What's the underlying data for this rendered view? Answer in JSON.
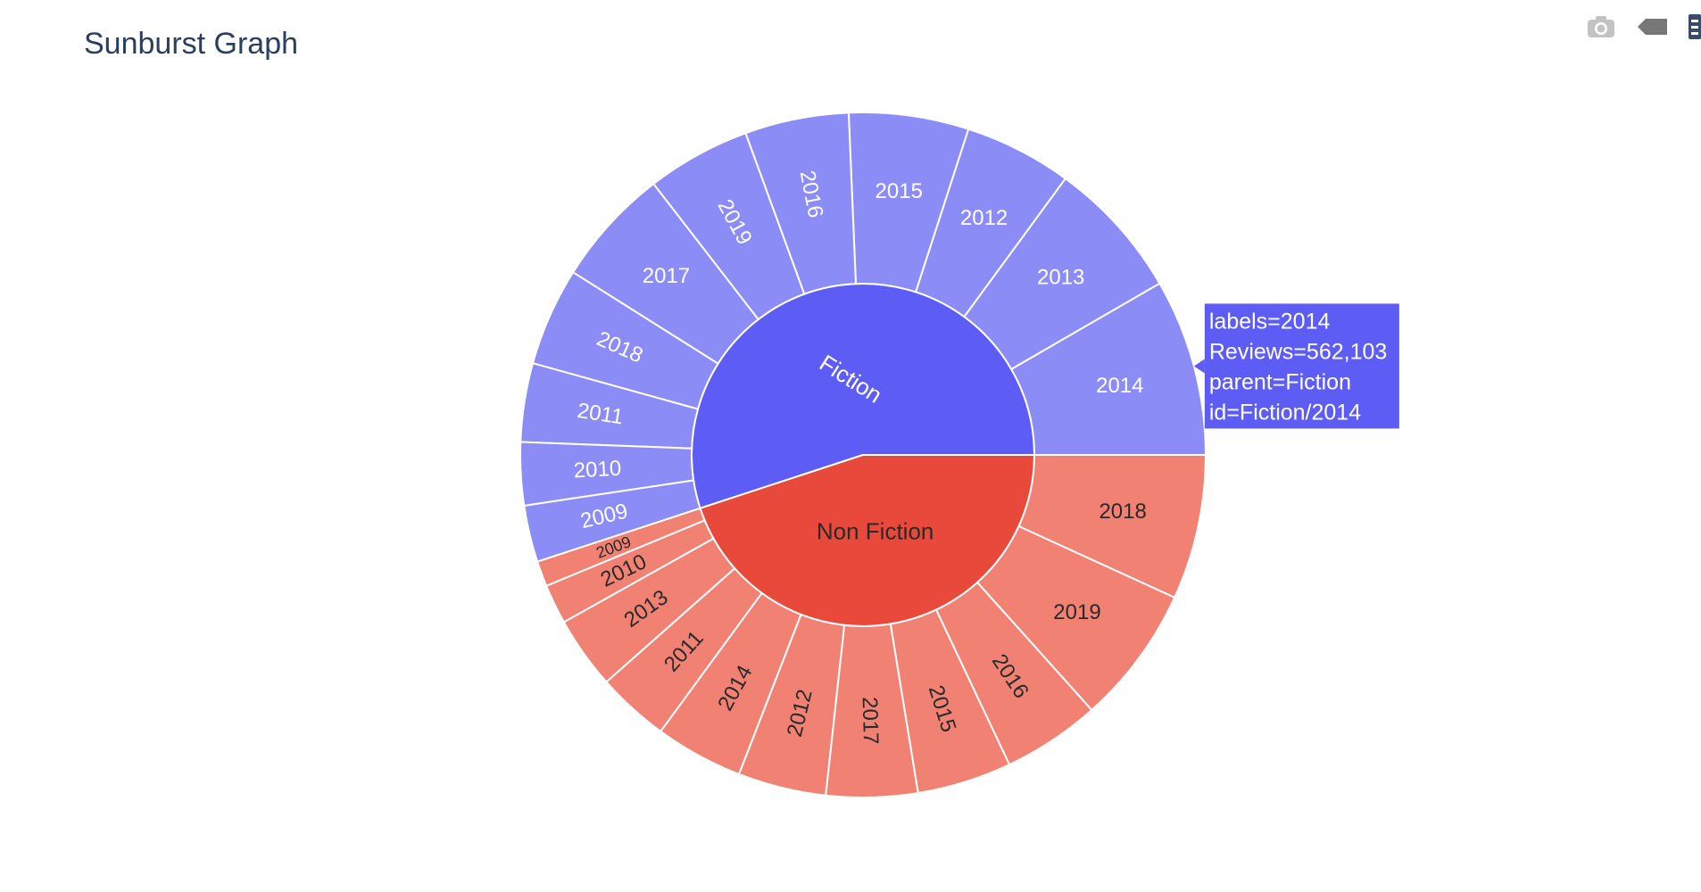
{
  "title": "Sunburst Graph",
  "modebar": {
    "icons": [
      "camera-icon",
      "tag-icon",
      "bar-chart-icon"
    ]
  },
  "colors": {
    "fiction_inner": "#5d5df6",
    "fiction_outer": "#8c8cf6",
    "nonfiction_inner": "#e8493a",
    "nonfiction_outer": "#f08173",
    "hover_bg": "#5d5df6",
    "hover_text": "#ffffff"
  },
  "chart_data": {
    "type": "sunburst",
    "value_name": "Reviews",
    "parents": [
      {
        "label": "Fiction",
        "color_key": "fiction"
      },
      {
        "label": "Non Fiction",
        "color_key": "nonfiction"
      }
    ],
    "children": [
      {
        "parent": "Fiction",
        "labels": [
          "2014",
          "2013",
          "2012",
          "2015",
          "2016",
          "2019",
          "2017",
          "2018",
          "2011",
          "2010",
          "2009"
        ],
        "values": [
          562103,
          444000,
          342000,
          380000,
          330000,
          330000,
          376000,
          312000,
          250000,
          200000,
          180000
        ]
      },
      {
        "parent": "Non Fiction",
        "labels": [
          "2009",
          "2010",
          "2013",
          "2011",
          "2014",
          "2012",
          "2017",
          "2015",
          "2016",
          "2019",
          "2018"
        ],
        "values": [
          81000,
          126000,
          230000,
          230000,
          280000,
          280000,
          290000,
          300000,
          310000,
          440000,
          460000
        ]
      }
    ]
  },
  "hover": {
    "lines": [
      "labels=2014",
      "Reviews=562,103",
      "parent=Fiction",
      "id=Fiction/2014"
    ]
  }
}
